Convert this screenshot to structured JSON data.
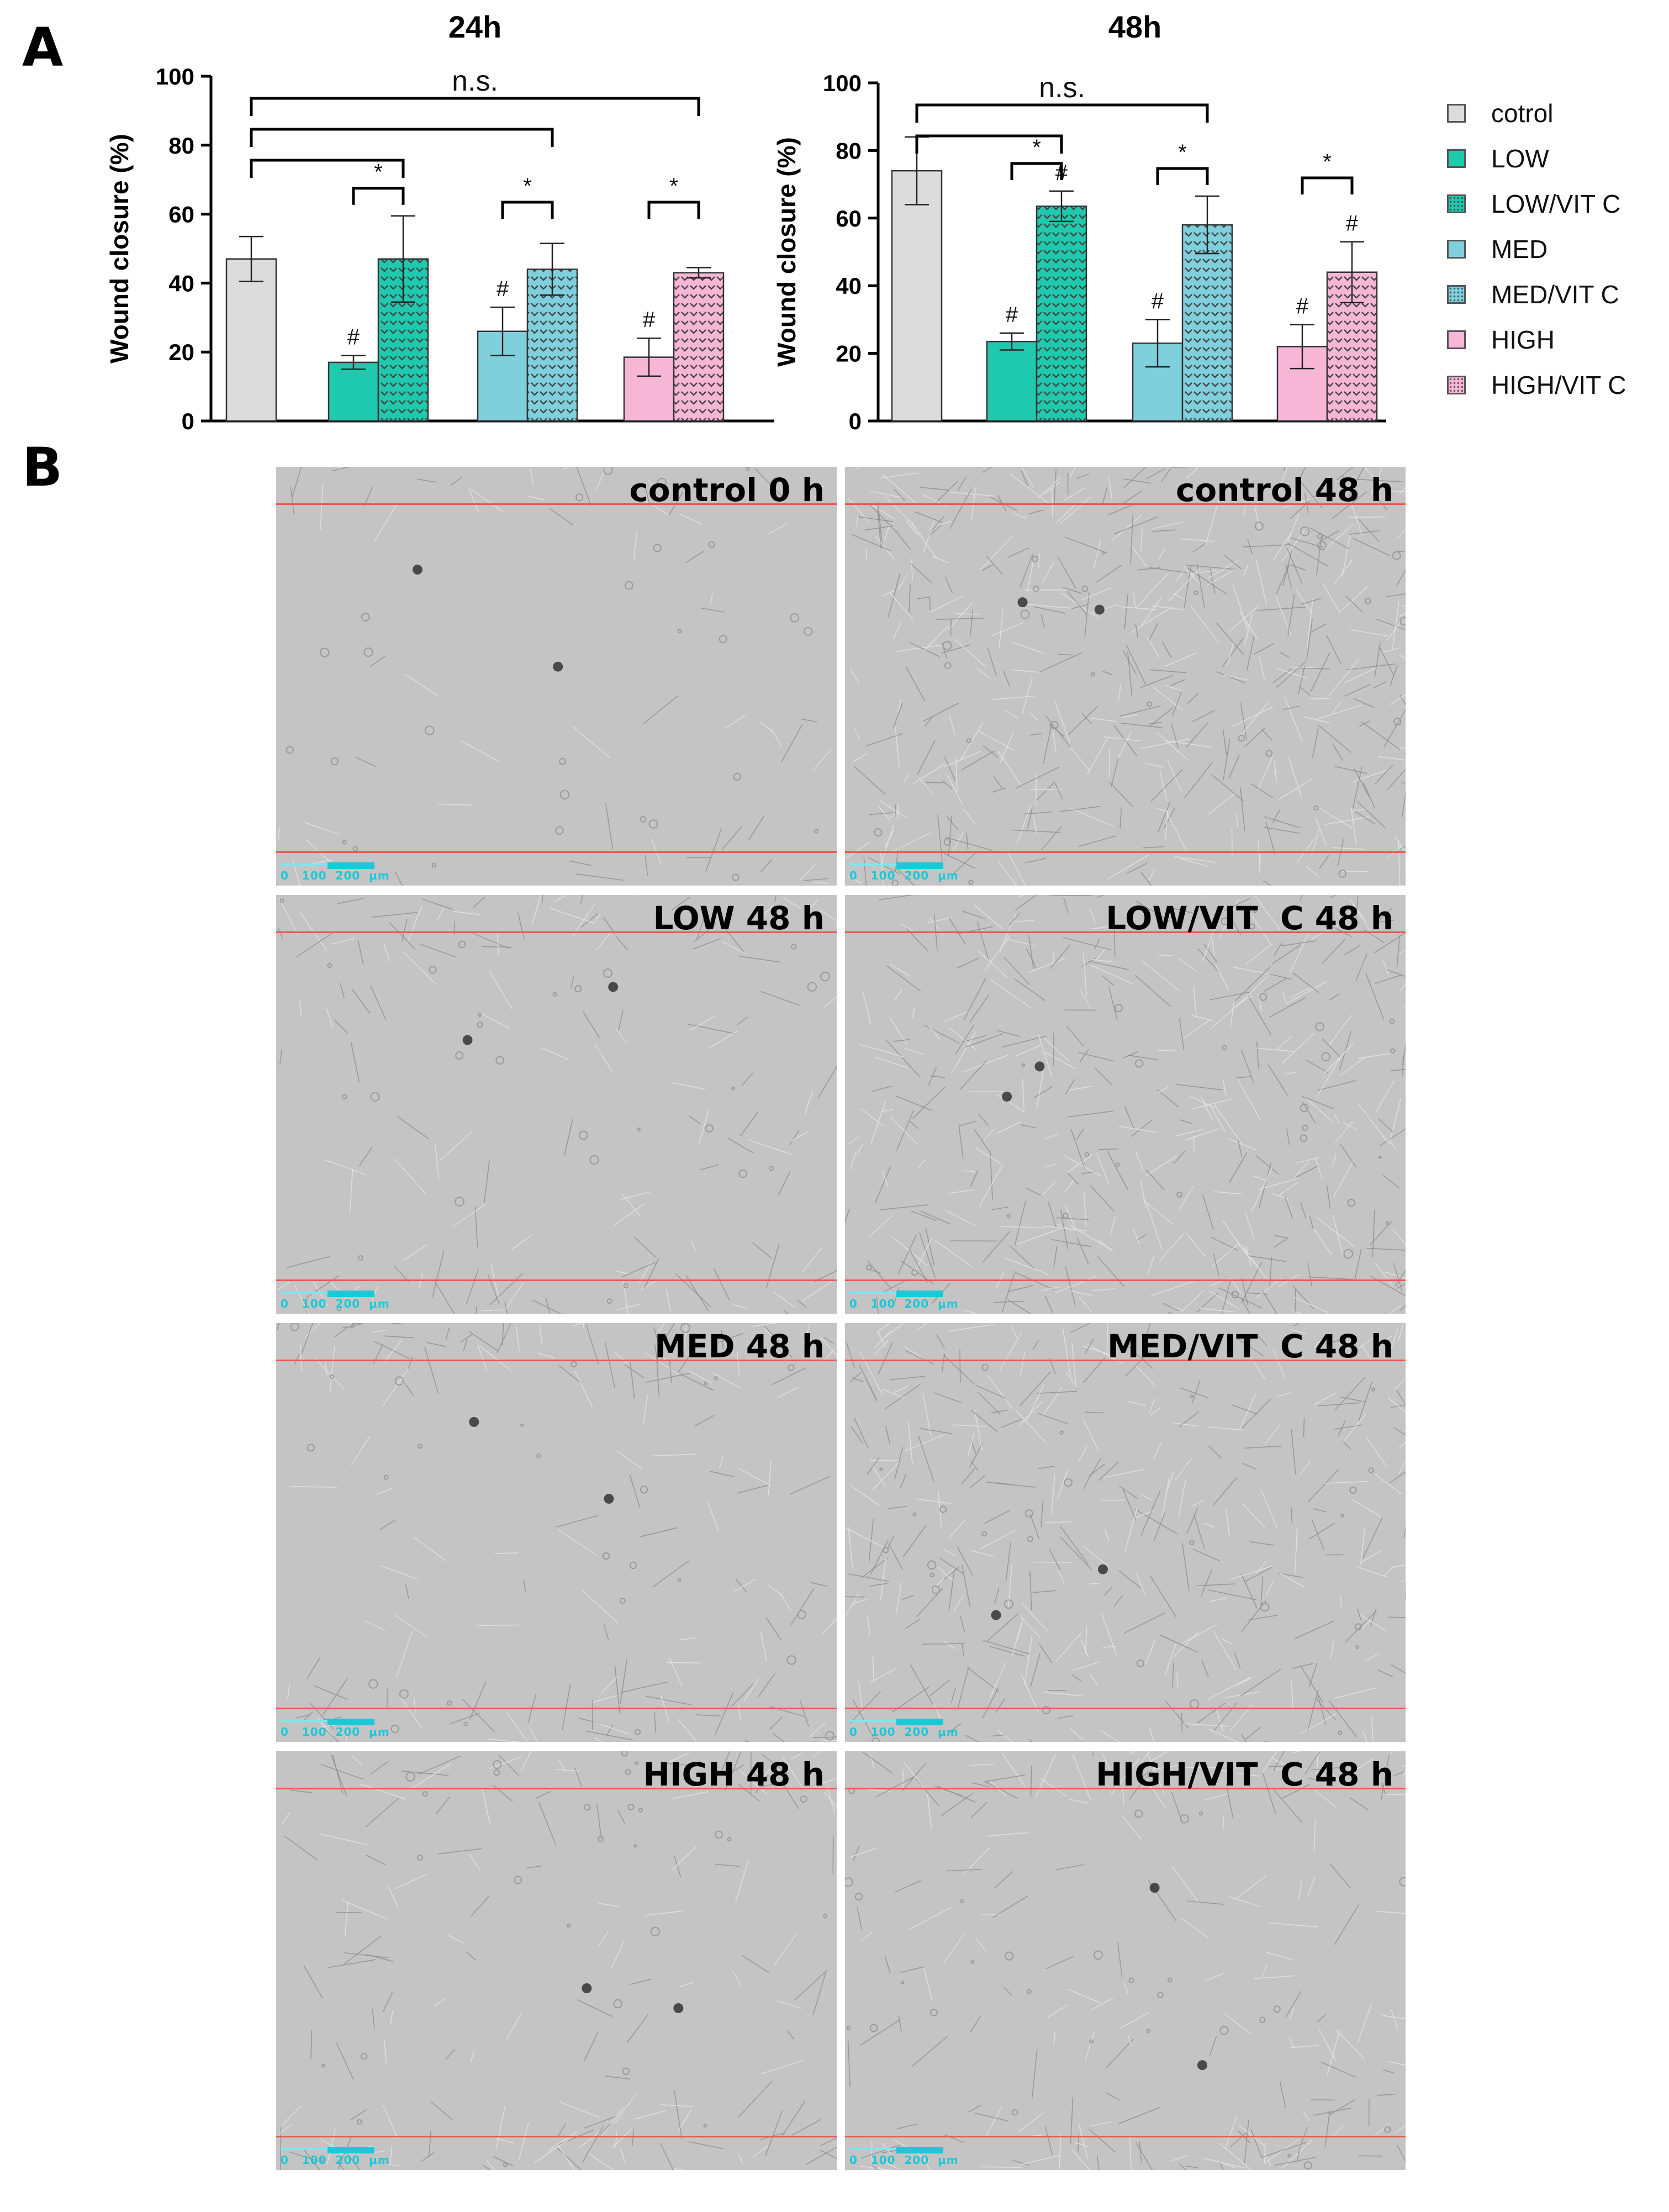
{
  "panel_labels": {
    "a": "A",
    "b": "B"
  },
  "legend": [
    {
      "label": "cotrol",
      "color": "#dcdcdc",
      "pattern": "none"
    },
    {
      "label": "LOW",
      "color": "#1ec9ae",
      "pattern": "none"
    },
    {
      "label": "LOW/VIT C",
      "color": "#1ec9ae",
      "pattern": "chevron"
    },
    {
      "label": "MED",
      "color": "#7fcfdd",
      "pattern": "none"
    },
    {
      "label": "MED/VIT  C",
      "color": "#7fcfdd",
      "pattern": "chevron"
    },
    {
      "label": "HIGH",
      "color": "#f7b6d6",
      "pattern": "none"
    },
    {
      "label": "HIGH/VIT C",
      "color": "#f7b6d6",
      "pattern": "chevron"
    }
  ],
  "chart_data": [
    {
      "type": "bar",
      "title": "24h",
      "ylabel": "Wound closure (%)",
      "ylim": [
        0,
        100
      ],
      "yticks": [
        0,
        20,
        40,
        60,
        80,
        100
      ],
      "categories": [
        "cotrol",
        "LOW",
        "LOW/VIT C",
        "MED",
        "MED/VIT  C",
        "HIGH",
        "HIGH/VIT C"
      ],
      "values": [
        47,
        17,
        47,
        26,
        44,
        18.5,
        43
      ],
      "errors": [
        6.5,
        2,
        12.5,
        7,
        7.5,
        5.5,
        1.5
      ],
      "hash_marks": [
        "",
        "#",
        "",
        "#",
        "",
        "#",
        ""
      ],
      "significance": [
        {
          "from": 0,
          "to": 6,
          "label": "n.s."
        },
        {
          "from": 0,
          "to": 4,
          "label": ""
        },
        {
          "from": 0,
          "to": 2,
          "label": ""
        },
        {
          "from": 1,
          "to": 2,
          "label": "*"
        },
        {
          "from": 3,
          "to": 4,
          "label": "*"
        },
        {
          "from": 5,
          "to": 6,
          "label": "*"
        }
      ]
    },
    {
      "type": "bar",
      "title": "48h",
      "ylabel": "Wound closure (%)",
      "ylim": [
        0,
        100
      ],
      "yticks": [
        0,
        20,
        40,
        60,
        80,
        100
      ],
      "categories": [
        "cotrol",
        "LOW",
        "LOW/VIT C",
        "MED",
        "MED/VIT  C",
        "HIGH",
        "HIGH/VIT C"
      ],
      "values": [
        74,
        23.5,
        63.5,
        23,
        58,
        22,
        44
      ],
      "errors": [
        10,
        2.5,
        4.5,
        7,
        8.5,
        6.5,
        9
      ],
      "hash_marks": [
        "",
        "#",
        "#",
        "#",
        "",
        "#",
        "#"
      ],
      "significance": [
        {
          "from": 0,
          "to": 4,
          "label": "n.s."
        },
        {
          "from": 0,
          "to": 2,
          "label": ""
        },
        {
          "from": 1,
          "to": 2,
          "label": "*"
        },
        {
          "from": 3,
          "to": 4,
          "label": "*"
        },
        {
          "from": 5,
          "to": 6,
          "label": "*"
        }
      ]
    }
  ],
  "micrographs": [
    {
      "caption": "control 0 h",
      "cells": 0.05,
      "seed": 3
    },
    {
      "caption": "control 48 h",
      "cells": 1.0,
      "seed": 7
    },
    {
      "caption": "LOW 48 h",
      "cells": 0.25,
      "seed": 11
    },
    {
      "caption": "LOW/VIT  C 48 h",
      "cells": 0.85,
      "seed": 13
    },
    {
      "caption": "MED 48 h",
      "cells": 0.3,
      "seed": 17
    },
    {
      "caption": "MED/VIT  C 48 h",
      "cells": 0.75,
      "seed": 19
    },
    {
      "caption": "HIGH 48 h",
      "cells": 0.28,
      "seed": 23
    },
    {
      "caption": "HIGH/VIT  C 48 h",
      "cells": 0.4,
      "seed": 29
    }
  ],
  "scale_bar_text": "0   100  200  µm"
}
